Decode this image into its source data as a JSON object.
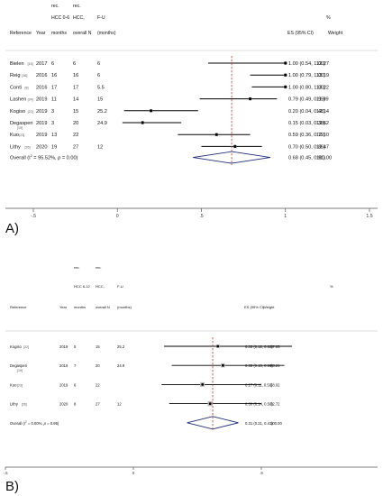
{
  "chart_data": [
    {
      "type": "forest",
      "panel_label": "A)",
      "header": {
        "reference": "Reference",
        "year": "Year",
        "col1": [
          "rec.",
          "HCC 0-6",
          "months"
        ],
        "col2": [
          "rec.",
          "HCC,",
          "overall N"
        ],
        "col3": [
          "F-U",
          "(months)"
        ],
        "es": "ES (95% CI)",
        "pct": "%",
        "weight": "Weight"
      },
      "rows": [
        {
          "ref": "Bielen",
          "cite": "[15]",
          "sub": "",
          "year": "2017",
          "rec_hcc": "6",
          "overall_n": "6",
          "fu": "6",
          "es": 1.0,
          "lo": 0.54,
          "hi": 1.0,
          "es_text": "1.00 (0.54, 1.00)",
          "weight": "12.27"
        },
        {
          "ref": "Reig",
          "cite": "[36]",
          "sub": "",
          "year": "2016",
          "rec_hcc": "16",
          "overall_n": "16",
          "fu": "6",
          "es": 1.0,
          "lo": 0.79,
          "hi": 1.0,
          "es_text": "1.00 (0.79, 1.00)",
          "weight": "13.19"
        },
        {
          "ref": "Conti",
          "cite": "[8]",
          "sub": "",
          "year": "2016",
          "rec_hcc": "17",
          "overall_n": "17",
          "fu": "5.5",
          "es": 1.0,
          "lo": 0.8,
          "hi": 1.0,
          "es_text": "1.00 (0.80, 1.00)",
          "weight": "13.22"
        },
        {
          "ref": "Lashen",
          "cite": "[24]",
          "sub": "",
          "year": "2019",
          "rec_hcc": "11",
          "overall_n": "14",
          "fu": "15",
          "es": 0.79,
          "lo": 0.49,
          "hi": 0.95,
          "es_text": "0.79 (0.49, 0.95)",
          "weight": "11.99"
        },
        {
          "ref": "Kogiso",
          "cite": "[22]",
          "sub": "",
          "year": "2019",
          "rec_hcc": "3",
          "overall_n": "15",
          "fu": "25.2",
          "es": 0.2,
          "lo": 0.04,
          "hi": 0.48,
          "es_text": "0.20 (0.04, 0.48)",
          "weight": "12.14"
        },
        {
          "ref": "Degasperi",
          "cite": "",
          "sub": "[19]",
          "year": "2019",
          "rec_hcc": "3",
          "overall_n": "20",
          "fu": "24.9",
          "es": 0.15,
          "lo": 0.03,
          "hi": 0.38,
          "es_text": "0.15 (0.03, 0.38)",
          "weight": "12.62"
        },
        {
          "ref": "Kuo",
          "cite": "[23]",
          "sub": "",
          "year": "2019",
          "rec_hcc": "13",
          "overall_n": "22",
          "fu": "",
          "es": 0.59,
          "lo": 0.36,
          "hi": 0.79,
          "es_text": "0.59 (0.36, 0.79)",
          "weight": "12.10"
        },
        {
          "ref": "Lithy",
          "cite": "[26]",
          "sub": "",
          "year": "2020",
          "rec_hcc": "19",
          "overall_n": "27",
          "fu": "12",
          "es": 0.7,
          "lo": 0.5,
          "hi": 0.86,
          "es_text": "0.70 (0.50, 0.86)",
          "weight": "12.47"
        }
      ],
      "overall": {
        "label": "Overall  (I  = 95.52%, p = 0.00)",
        "label_pre": "Overall  (I",
        "sup": "2",
        "label_post": " = 95.52%, ",
        "p_label": "p",
        "p_post": " = 0.00)",
        "es": 0.68,
        "lo": 0.45,
        "hi": 0.91,
        "es_text": "0.68 (0.45, 0.91)",
        "weight": "100.00"
      },
      "reference_line": 0.68,
      "xlim": [
        -0.5,
        1.5
      ],
      "xticks": [
        -0.5,
        0,
        0.5,
        1,
        1.5
      ],
      "xtick_labels": [
        "-.5",
        "0",
        ".5",
        "1",
        "1.5"
      ]
    },
    {
      "type": "forest",
      "panel_label": "B)",
      "header": {
        "reference": "Reference",
        "year": "Year",
        "col1": [
          "rec.",
          "HCC 6-12",
          "months"
        ],
        "col2": [
          "rec.",
          "HCC,",
          "overall N"
        ],
        "col3": [
          "F-U",
          "(months)"
        ],
        "es": "ES (95% CI)",
        "pct": "%",
        "weight": "Weight"
      },
      "rows": [
        {
          "ref": "Kogiso",
          "cite": "[22]",
          "sub": "",
          "year": "2019",
          "rec_hcc": "5",
          "overall_n": "15",
          "fu": "25.2",
          "es": 0.33,
          "lo": 0.12,
          "hi": 0.62,
          "es_text": "0.33 (0.12, 0.62)",
          "weight": "17.05"
        },
        {
          "ref": "Degasperi",
          "cite": "",
          "sub": "[19]",
          "year": "2019",
          "rec_hcc": "7",
          "overall_n": "20",
          "fu": "24.9",
          "es": 0.35,
          "lo": 0.15,
          "hi": 0.59,
          "es_text": "0.35 (0.15, 0.59)",
          "weight": "23.21"
        },
        {
          "ref": "Kuo",
          "cite": "[23]",
          "sub": "",
          "year": "2019",
          "rec_hcc": "6",
          "overall_n": "22",
          "fu": "",
          "es": 0.27,
          "lo": 0.11,
          "hi": 0.5,
          "es_text": "0.27 (0.11, 0.50)",
          "weight": "28.02"
        },
        {
          "ref": "Lithy",
          "cite": "[26]",
          "sub": "",
          "year": "2020",
          "rec_hcc": "8",
          "overall_n": "27",
          "fu": "12",
          "es": 0.3,
          "lo": 0.14,
          "hi": 0.5,
          "es_text": "0.30 (0.14, 0.50)",
          "weight": "32.72"
        }
      ],
      "overall": {
        "label": "Overall  (I  = 0.00%, p = 0.95)",
        "label_pre": "Overall  (I",
        "sup": "2",
        "label_post": " = 0.00%, ",
        "p_label": "p",
        "p_post": " = 0.95)",
        "es": 0.31,
        "lo": 0.21,
        "hi": 0.41,
        "es_text": "0.31 (0.21, 0.41)",
        "weight": "100.00"
      },
      "reference_line": 0.31,
      "xlim": [
        -0.5,
        1.0
      ],
      "xticks": [
        -0.5,
        0,
        0.5
      ],
      "xtick_labels": [
        "-.5",
        "0",
        ".5"
      ]
    }
  ]
}
